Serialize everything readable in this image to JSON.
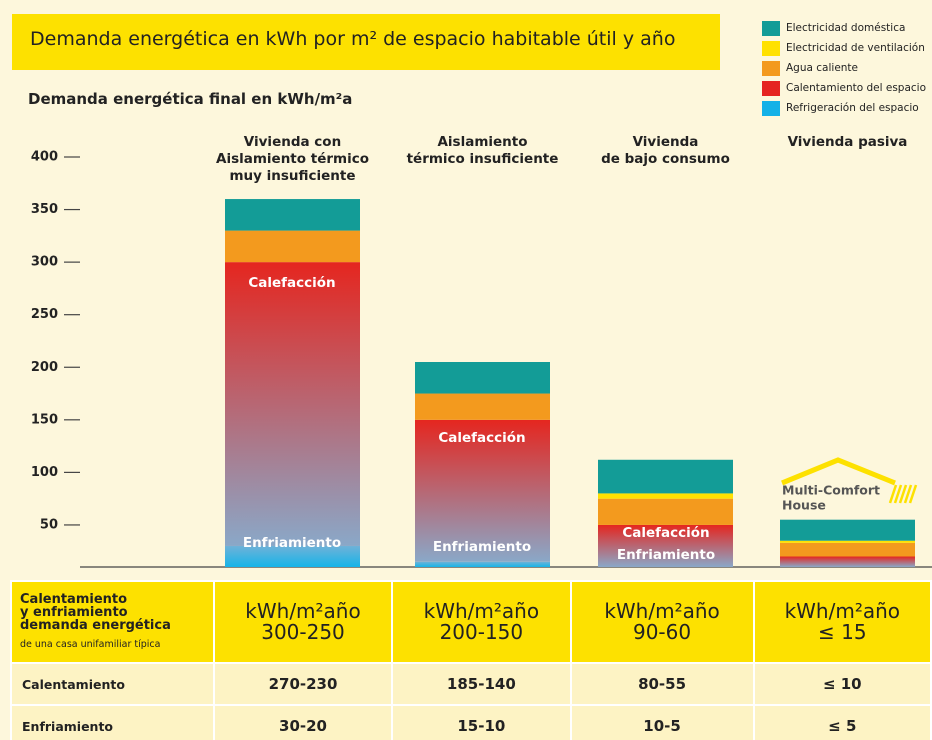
{
  "chart_data": {
    "type": "stacked_bar",
    "title": "Demanda energética en kWh por m² de espacio habitable útil y año",
    "subtitle": "Demanda energética final en kWh/m²a",
    "categories": [
      "Vivienda con\nAislamiento térmico\nmuy insuficiente",
      "Aislamiento\ntérmico insuficiente",
      "Vivienda\nde bajo consumo",
      "Vivienda pasiva"
    ],
    "series": [
      {
        "name": "Refrigeración del espacio",
        "color": "#14b1e7",
        "values": [
          30,
          15,
          10,
          5
        ]
      },
      {
        "name": "Calentamiento del espacio",
        "color": "#e52421",
        "values": [
          270,
          135,
          40,
          15
        ]
      },
      {
        "name": "Agua caliente",
        "color": "#f39a1e",
        "values": [
          30,
          25,
          25,
          13
        ]
      },
      {
        "name": "Electricidad de ventilación",
        "color": "#ffe100",
        "values": [
          0,
          0,
          5,
          2
        ]
      },
      {
        "name": "Electricidad doméstica",
        "color": "#139c97",
        "values": [
          30,
          30,
          32,
          20
        ]
      }
    ],
    "ylim": [
      10,
      400
    ],
    "yticks": [
      50,
      100,
      150,
      200,
      250,
      300,
      350,
      400
    ],
    "annotations": [
      "Calefacción",
      "Enfriamiento",
      "Calefacción",
      "Enfriamiento",
      "Calefacción",
      "Enfriamiento"
    ],
    "logo": [
      "Multi-Comfort",
      "House"
    ]
  },
  "table": {
    "header": [
      "Calentamiento\ny enfriamiento\ndemanda energética",
      "kWh/m²año\n300-250",
      "kWh/m²año\n200-150",
      "kWh/m²año\n90-60",
      "kWh/m²año\n≤ 15"
    ],
    "header_note": "de una casa unifamiliar típica",
    "rows": [
      [
        "Calentamiento",
        "270-230",
        "185-140",
        "80-55",
        "≤ 10"
      ],
      [
        "Enfriamiento",
        "30-20",
        "15-10",
        "10-5",
        "≤ 5"
      ]
    ]
  }
}
